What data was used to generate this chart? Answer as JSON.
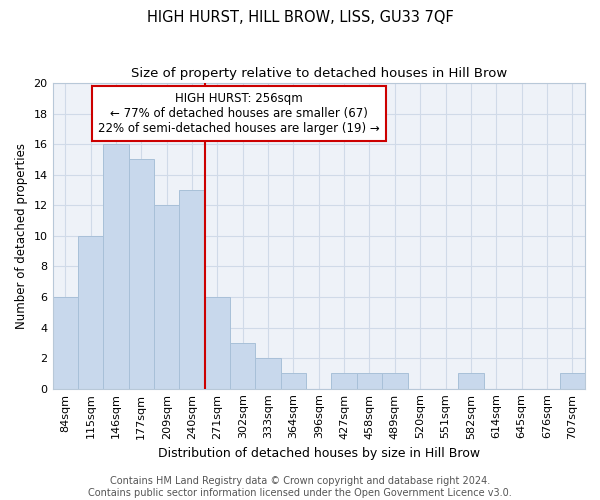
{
  "title": "HIGH HURST, HILL BROW, LISS, GU33 7QF",
  "subtitle": "Size of property relative to detached houses in Hill Brow",
  "xlabel": "Distribution of detached houses by size in Hill Brow",
  "ylabel": "Number of detached properties",
  "categories": [
    "84sqm",
    "115sqm",
    "146sqm",
    "177sqm",
    "209sqm",
    "240sqm",
    "271sqm",
    "302sqm",
    "333sqm",
    "364sqm",
    "396sqm",
    "427sqm",
    "458sqm",
    "489sqm",
    "520sqm",
    "551sqm",
    "582sqm",
    "614sqm",
    "645sqm",
    "676sqm",
    "707sqm"
  ],
  "values": [
    6,
    10,
    16,
    15,
    12,
    13,
    6,
    3,
    2,
    1,
    0,
    1,
    1,
    1,
    0,
    0,
    1,
    0,
    0,
    0,
    1
  ],
  "bar_color": "#c8d8ec",
  "bar_edge_color": "#a8c0d8",
  "bar_linewidth": 0.7,
  "vline_color": "#cc0000",
  "vline_pos": 5.516,
  "annotation_text": "HIGH HURST: 256sqm\n← 77% of detached houses are smaller (67)\n22% of semi-detached houses are larger (19) →",
  "annotation_box_edgecolor": "#cc0000",
  "ylim": [
    0,
    20
  ],
  "yticks": [
    0,
    2,
    4,
    6,
    8,
    10,
    12,
    14,
    16,
    18,
    20
  ],
  "grid_color": "#d0dae8",
  "bg_color": "#ffffff",
  "plot_bg_color": "#eef2f8",
  "footer_text": "Contains HM Land Registry data © Crown copyright and database right 2024.\nContains public sector information licensed under the Open Government Licence v3.0.",
  "title_fontsize": 10.5,
  "subtitle_fontsize": 9.5,
  "xlabel_fontsize": 9,
  "ylabel_fontsize": 8.5,
  "tick_fontsize": 8,
  "annotation_fontsize": 8.5,
  "footer_fontsize": 7
}
